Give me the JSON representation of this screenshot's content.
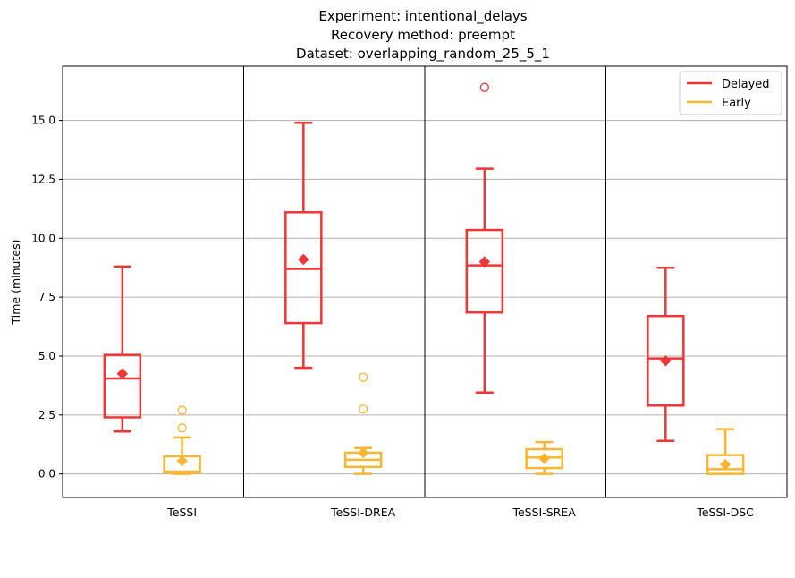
{
  "chart_data": {
    "type": "box",
    "title": [
      "Experiment: intentional_delays",
      "Recovery method: preempt",
      "Dataset: overlapping_random_25_5_1"
    ],
    "ylabel": "Time (minutes)",
    "ylim": [
      -1.0,
      17.3
    ],
    "yticks": [
      0.0,
      2.5,
      5.0,
      7.5,
      10.0,
      12.5,
      15.0
    ],
    "ytick_labels": [
      "0.0",
      "2.5",
      "5.0",
      "7.5",
      "10.0",
      "12.5",
      "15.0"
    ],
    "grid": "horizontal",
    "legend_position": "top-right",
    "categories": [
      "TeSSI",
      "TeSSI-DREA",
      "TeSSI-SREA",
      "TeSSI-DSC"
    ],
    "series": [
      {
        "name": "Delayed",
        "color": "#f03535",
        "boxes": [
          {
            "whisker_low": 1.8,
            "q1": 2.4,
            "median": 4.05,
            "q3": 5.05,
            "whisker_high": 8.8,
            "mean": 4.25,
            "outliers": []
          },
          {
            "whisker_low": 4.5,
            "q1": 6.4,
            "median": 8.7,
            "q3": 11.1,
            "whisker_high": 14.9,
            "mean": 9.1,
            "outliers": []
          },
          {
            "whisker_low": 3.45,
            "q1": 6.85,
            "median": 8.85,
            "q3": 10.35,
            "whisker_high": 12.95,
            "mean": 9.0,
            "outliers": [
              16.4
            ]
          },
          {
            "whisker_low": 1.4,
            "q1": 2.9,
            "median": 4.9,
            "q3": 6.7,
            "whisker_high": 8.75,
            "mean": 4.8,
            "outliers": []
          }
        ]
      },
      {
        "name": "Early",
        "color": "#fbb630",
        "boxes": [
          {
            "whisker_low": 0.0,
            "q1": 0.05,
            "median": 0.1,
            "q3": 0.75,
            "whisker_high": 1.55,
            "mean": 0.55,
            "outliers": [
              1.95,
              2.7
            ]
          },
          {
            "whisker_low": 0.0,
            "q1": 0.3,
            "median": 0.6,
            "q3": 0.9,
            "whisker_high": 1.1,
            "mean": 0.9,
            "outliers": [
              2.75,
              4.1
            ]
          },
          {
            "whisker_low": 0.0,
            "q1": 0.25,
            "median": 0.7,
            "q3": 1.05,
            "whisker_high": 1.35,
            "mean": 0.65,
            "outliers": []
          },
          {
            "whisker_low": 0.0,
            "q1": 0.0,
            "median": 0.2,
            "q3": 0.8,
            "whisker_high": 1.9,
            "mean": 0.4,
            "outliers": []
          }
        ]
      }
    ]
  }
}
